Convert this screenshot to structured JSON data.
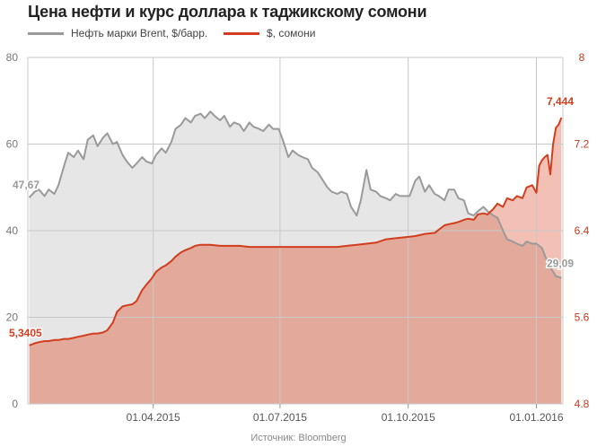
{
  "title": "Цена нефти и курс доллара к таджикскому сомони",
  "source": "Источник: Bloomberg",
  "colors": {
    "oil_line": "#9a9a9a",
    "oil_fill": "#e6e6e6",
    "usd_line": "#d13e1f",
    "usd_fill": "#e3aa9b",
    "usd_fill_light": "#f2c0b4",
    "left_axis_text": "#777777",
    "right_axis_text": "#c0391b",
    "grid": "#c8c8c8"
  },
  "chart_data": {
    "type": "area",
    "title": "Цена нефти и курс доллара к таджикскому сомони",
    "x_start": "2015-01-01",
    "x_end": "2016-01-20",
    "x_ticks": [
      "01.04.2015",
      "01.07.2015",
      "01.10.2015",
      "01.01.2016"
    ],
    "y_left": {
      "min": 0,
      "max": 80,
      "ticks": [
        "0",
        "20",
        "40",
        "60",
        "80"
      ]
    },
    "y_right": {
      "min": 4.8,
      "max": 8,
      "ticks": [
        "4.8",
        "5.6",
        "6.4",
        "7.2",
        "8"
      ]
    },
    "grid": true,
    "legend_position": "top-left",
    "annotations": {
      "oil_start": "47,67",
      "oil_end": "29,09",
      "usd_start": "5,3405",
      "usd_end": "7,444"
    },
    "series": [
      {
        "name": "Нефть марки Brent, $/барр.",
        "axis": "left",
        "points": [
          [
            "2015-01-02",
            47.67
          ],
          [
            "2015-01-06",
            49.0
          ],
          [
            "2015-01-09",
            49.5
          ],
          [
            "2015-01-13",
            48.0
          ],
          [
            "2015-01-16",
            49.5
          ],
          [
            "2015-01-20",
            48.5
          ],
          [
            "2015-01-23",
            50.5
          ],
          [
            "2015-01-27",
            55.0
          ],
          [
            "2015-01-30",
            58.0
          ],
          [
            "2015-02-03",
            57.0
          ],
          [
            "2015-02-06",
            58.5
          ],
          [
            "2015-02-10",
            56.5
          ],
          [
            "2015-02-13",
            61.0
          ],
          [
            "2015-02-17",
            62.0
          ],
          [
            "2015-02-20",
            59.5
          ],
          [
            "2015-02-24",
            61.5
          ],
          [
            "2015-02-27",
            62.5
          ],
          [
            "2015-03-03",
            60.0
          ],
          [
            "2015-03-06",
            60.5
          ],
          [
            "2015-03-10",
            57.5
          ],
          [
            "2015-03-13",
            56.0
          ],
          [
            "2015-03-17",
            54.5
          ],
          [
            "2015-03-20",
            55.5
          ],
          [
            "2015-03-24",
            57.0
          ],
          [
            "2015-03-27",
            56.0
          ],
          [
            "2015-03-31",
            55.5
          ],
          [
            "2015-04-03",
            57.5
          ],
          [
            "2015-04-07",
            59.0
          ],
          [
            "2015-04-10",
            58.0
          ],
          [
            "2015-04-14",
            60.5
          ],
          [
            "2015-04-17",
            63.5
          ],
          [
            "2015-04-21",
            64.5
          ],
          [
            "2015-04-24",
            66.0
          ],
          [
            "2015-04-28",
            65.0
          ],
          [
            "2015-05-01",
            66.5
          ],
          [
            "2015-05-05",
            67.0
          ],
          [
            "2015-05-08",
            66.0
          ],
          [
            "2015-05-12",
            67.5
          ],
          [
            "2015-05-15",
            66.5
          ],
          [
            "2015-05-19",
            65.5
          ],
          [
            "2015-05-22",
            66.5
          ],
          [
            "2015-05-26",
            64.0
          ],
          [
            "2015-05-29",
            65.0
          ],
          [
            "2015-06-02",
            64.5
          ],
          [
            "2015-06-05",
            63.0
          ],
          [
            "2015-06-09",
            65.0
          ],
          [
            "2015-06-12",
            64.0
          ],
          [
            "2015-06-16",
            63.5
          ],
          [
            "2015-06-19",
            63.0
          ],
          [
            "2015-06-23",
            64.5
          ],
          [
            "2015-06-26",
            63.5
          ],
          [
            "2015-06-30",
            63.5
          ],
          [
            "2015-07-03",
            61.0
          ],
          [
            "2015-07-07",
            57.0
          ],
          [
            "2015-07-10",
            58.5
          ],
          [
            "2015-07-14",
            57.5
          ],
          [
            "2015-07-17",
            57.0
          ],
          [
            "2015-07-21",
            56.5
          ],
          [
            "2015-07-24",
            54.5
          ],
          [
            "2015-07-28",
            53.5
          ],
          [
            "2015-07-31",
            52.0
          ],
          [
            "2015-08-04",
            50.0
          ],
          [
            "2015-08-07",
            49.0
          ],
          [
            "2015-08-11",
            48.5
          ],
          [
            "2015-08-14",
            49.0
          ],
          [
            "2015-08-18",
            48.5
          ],
          [
            "2015-08-21",
            45.5
          ],
          [
            "2015-08-25",
            43.5
          ],
          [
            "2015-08-28",
            47.0
          ],
          [
            "2015-09-01",
            54.0
          ],
          [
            "2015-09-04",
            49.5
          ],
          [
            "2015-09-08",
            49.0
          ],
          [
            "2015-09-11",
            48.0
          ],
          [
            "2015-09-15",
            47.5
          ],
          [
            "2015-09-18",
            47.0
          ],
          [
            "2015-09-22",
            48.5
          ],
          [
            "2015-09-25",
            48.0
          ],
          [
            "2015-09-29",
            48.0
          ],
          [
            "2015-10-02",
            48.0
          ],
          [
            "2015-10-06",
            51.5
          ],
          [
            "2015-10-09",
            52.5
          ],
          [
            "2015-10-13",
            49.0
          ],
          [
            "2015-10-16",
            50.5
          ],
          [
            "2015-10-20",
            48.5
          ],
          [
            "2015-10-23",
            48.0
          ],
          [
            "2015-10-27",
            47.0
          ],
          [
            "2015-10-30",
            49.5
          ],
          [
            "2015-11-03",
            49.5
          ],
          [
            "2015-11-06",
            47.5
          ],
          [
            "2015-11-10",
            47.0
          ],
          [
            "2015-11-13",
            44.0
          ],
          [
            "2015-11-17",
            43.5
          ],
          [
            "2015-11-20",
            44.5
          ],
          [
            "2015-11-24",
            45.5
          ],
          [
            "2015-11-27",
            44.5
          ],
          [
            "2015-12-01",
            43.5
          ],
          [
            "2015-12-04",
            43.0
          ],
          [
            "2015-12-08",
            40.0
          ],
          [
            "2015-12-11",
            38.0
          ],
          [
            "2015-12-15",
            37.5
          ],
          [
            "2015-12-18",
            37.0
          ],
          [
            "2015-12-22",
            36.5
          ],
          [
            "2015-12-25",
            37.5
          ],
          [
            "2015-12-29",
            37.0
          ],
          [
            "2016-01-01",
            37.0
          ],
          [
            "2016-01-05",
            36.0
          ],
          [
            "2016-01-08",
            33.5
          ],
          [
            "2016-01-12",
            31.0
          ],
          [
            "2016-01-15",
            29.5
          ],
          [
            "2016-01-19",
            29.09
          ]
        ]
      },
      {
        "name": "$, сомони",
        "axis": "right",
        "points": [
          [
            "2015-01-02",
            5.3405
          ],
          [
            "2015-01-06",
            5.36
          ],
          [
            "2015-01-09",
            5.37
          ],
          [
            "2015-01-13",
            5.38
          ],
          [
            "2015-01-16",
            5.38
          ],
          [
            "2015-01-20",
            5.39
          ],
          [
            "2015-01-23",
            5.39
          ],
          [
            "2015-01-27",
            5.4
          ],
          [
            "2015-01-30",
            5.4
          ],
          [
            "2015-02-03",
            5.41
          ],
          [
            "2015-02-06",
            5.42
          ],
          [
            "2015-02-10",
            5.43
          ],
          [
            "2015-02-13",
            5.44
          ],
          [
            "2015-02-17",
            5.45
          ],
          [
            "2015-02-20",
            5.45
          ],
          [
            "2015-02-24",
            5.46
          ],
          [
            "2015-02-27",
            5.48
          ],
          [
            "2015-03-03",
            5.55
          ],
          [
            "2015-03-06",
            5.65
          ],
          [
            "2015-03-10",
            5.7
          ],
          [
            "2015-03-13",
            5.71
          ],
          [
            "2015-03-17",
            5.72
          ],
          [
            "2015-03-20",
            5.75
          ],
          [
            "2015-03-24",
            5.85
          ],
          [
            "2015-03-27",
            5.9
          ],
          [
            "2015-03-31",
            5.96
          ],
          [
            "2015-04-03",
            6.02
          ],
          [
            "2015-04-07",
            6.06
          ],
          [
            "2015-04-10",
            6.08
          ],
          [
            "2015-04-14",
            6.12
          ],
          [
            "2015-04-17",
            6.16
          ],
          [
            "2015-04-21",
            6.2
          ],
          [
            "2015-04-24",
            6.22
          ],
          [
            "2015-04-28",
            6.24
          ],
          [
            "2015-05-01",
            6.26
          ],
          [
            "2015-05-05",
            6.27
          ],
          [
            "2015-05-08",
            6.27
          ],
          [
            "2015-05-12",
            6.27
          ],
          [
            "2015-05-19",
            6.26
          ],
          [
            "2015-05-26",
            6.26
          ],
          [
            "2015-06-02",
            6.26
          ],
          [
            "2015-06-09",
            6.25
          ],
          [
            "2015-06-16",
            6.25
          ],
          [
            "2015-06-23",
            6.25
          ],
          [
            "2015-06-30",
            6.25
          ],
          [
            "2015-07-07",
            6.25
          ],
          [
            "2015-07-14",
            6.25
          ],
          [
            "2015-07-21",
            6.25
          ],
          [
            "2015-07-28",
            6.25
          ],
          [
            "2015-08-04",
            6.25
          ],
          [
            "2015-08-11",
            6.25
          ],
          [
            "2015-08-18",
            6.26
          ],
          [
            "2015-08-25",
            6.27
          ],
          [
            "2015-09-01",
            6.28
          ],
          [
            "2015-09-08",
            6.29
          ],
          [
            "2015-09-15",
            6.32
          ],
          [
            "2015-09-22",
            6.33
          ],
          [
            "2015-09-29",
            6.34
          ],
          [
            "2015-10-06",
            6.35
          ],
          [
            "2015-10-13",
            6.37
          ],
          [
            "2015-10-20",
            6.38
          ],
          [
            "2015-10-23",
            6.41
          ],
          [
            "2015-10-27",
            6.45
          ],
          [
            "2015-10-30",
            6.46
          ],
          [
            "2015-11-03",
            6.47
          ],
          [
            "2015-11-06",
            6.48
          ],
          [
            "2015-11-10",
            6.5
          ],
          [
            "2015-11-13",
            6.51
          ],
          [
            "2015-11-17",
            6.5
          ],
          [
            "2015-11-20",
            6.55
          ],
          [
            "2015-11-24",
            6.56
          ],
          [
            "2015-11-27",
            6.55
          ],
          [
            "2015-12-01",
            6.6
          ],
          [
            "2015-12-04",
            6.65
          ],
          [
            "2015-12-08",
            6.62
          ],
          [
            "2015-12-11",
            6.7
          ],
          [
            "2015-12-15",
            6.68
          ],
          [
            "2015-12-18",
            6.72
          ],
          [
            "2015-12-22",
            6.7
          ],
          [
            "2015-12-25",
            6.8
          ],
          [
            "2015-12-29",
            6.82
          ],
          [
            "2016-01-01",
            6.75
          ],
          [
            "2016-01-03",
            7.0
          ],
          [
            "2016-01-05",
            7.05
          ],
          [
            "2016-01-07",
            7.08
          ],
          [
            "2016-01-09",
            7.1
          ],
          [
            "2016-01-11",
            6.92
          ],
          [
            "2016-01-13",
            7.2
          ],
          [
            "2016-01-15",
            7.35
          ],
          [
            "2016-01-17",
            7.38
          ],
          [
            "2016-01-19",
            7.444
          ]
        ]
      }
    ]
  }
}
